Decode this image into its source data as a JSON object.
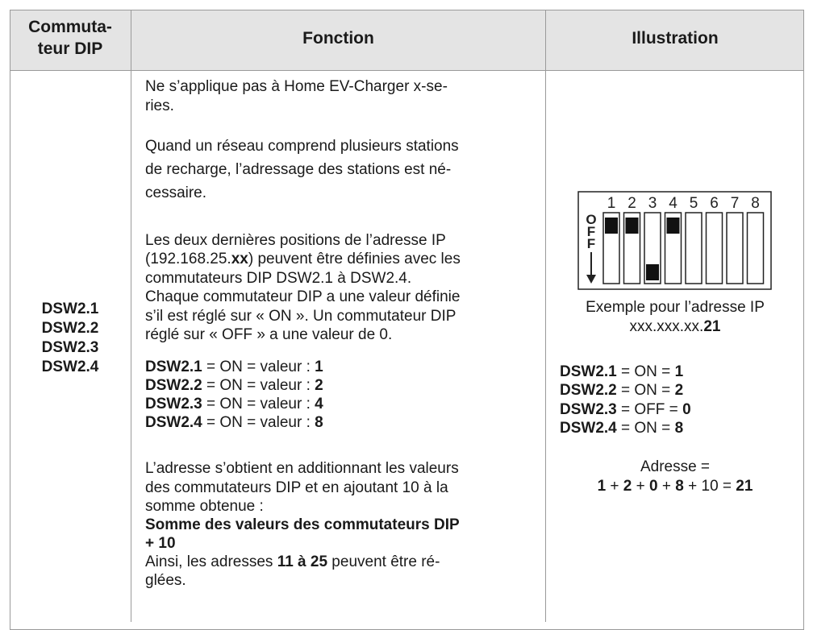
{
  "table": {
    "header": {
      "switch": [
        "Commuta-",
        "teur DIP"
      ],
      "function": "Fonction",
      "illustration": "Illustration"
    },
    "row": {
      "switches": [
        "DSW2.1",
        "DSW2.2",
        "DSW2.3",
        "DSW2.4"
      ],
      "function": [
        [
          "Ne s’applique pas à Home EV-Charger x-se-",
          "ries."
        ],
        [
          "Quand un réseau comprend plusieurs stations",
          "de recharge, l’adressage des stations est né-",
          "cessaire."
        ],
        [
          "Les deux dernières positions de l’adresse IP",
          [
            "(192.168.25.",
            "xx",
            ") peuvent être définies avec les"
          ],
          "commutateurs DIP DSW2.1 à DSW2.4.",
          "Chaque commutateur DIP a une valeur définie",
          "s’il est réglé sur « ON ». Un commutateur DIP",
          "réglé sur « OFF » a une valeur de 0."
        ],
        [
          [
            "DSW2.1",
            " = ON = valeur : ",
            "1"
          ],
          [
            "DSW2.2",
            " = ON = valeur : ",
            "2"
          ],
          [
            "DSW2.3",
            " = ON = valeur : ",
            "4"
          ],
          [
            "DSW2.4",
            " = ON = valeur : ",
            "8"
          ]
        ],
        [
          "L’adresse s’obtient en additionnant les valeurs",
          "des commutateurs DIP et en ajoutant 10 à la",
          "somme obtenue :",
          "Somme des valeurs des commutateurs DIP",
          "+ 10",
          [
            "Ainsi, les adresses ",
            "11 à 25",
            " peuvent être ré-"
          ],
          "glées."
        ]
      ],
      "illustration": {
        "dip_numbers": [
          "1",
          "2",
          "3",
          "4",
          "5",
          "6",
          "7",
          "8"
        ],
        "off_label": "OFF",
        "caption": [
          "Exemple pour l’adresse IP",
          [
            "xxx.xxx.xx.",
            "21"
          ]
        ],
        "settings": [
          [
            "DSW2.1",
            " = ON = ",
            "1"
          ],
          [
            "DSW2.2",
            " = ON = ",
            "2"
          ],
          [
            "DSW2.3",
            " = OFF = ",
            "0"
          ],
          [
            "DSW2.4",
            " = ON = ",
            "8"
          ]
        ],
        "sum": [
          "Adresse =",
          [
            "1",
            " + ",
            "2",
            " + ",
            "0",
            " + ",
            "8",
            " + 10 = ",
            "21"
          ]
        ]
      }
    }
  }
}
